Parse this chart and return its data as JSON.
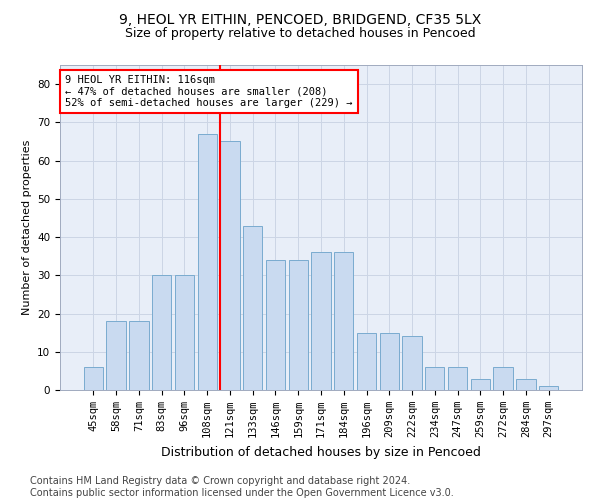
{
  "title_line1": "9, HEOL YR EITHIN, PENCOED, BRIDGEND, CF35 5LX",
  "title_line2": "Size of property relative to detached houses in Pencoed",
  "xlabel": "Distribution of detached houses by size in Pencoed",
  "ylabel": "Number of detached properties",
  "categories": [
    "45sqm",
    "58sqm",
    "71sqm",
    "83sqm",
    "96sqm",
    "108sqm",
    "121sqm",
    "133sqm",
    "146sqm",
    "159sqm",
    "171sqm",
    "184sqm",
    "196sqm",
    "209sqm",
    "222sqm",
    "234sqm",
    "247sqm",
    "259sqm",
    "272sqm",
    "284sqm",
    "297sqm"
  ],
  "bar_values": [
    6,
    18,
    18,
    30,
    30,
    67,
    65,
    43,
    34,
    34,
    36,
    36,
    15,
    15,
    14,
    6,
    6,
    3,
    6,
    3,
    1
  ],
  "bar_color": "#c9daf0",
  "bar_edge_color": "#7aabcf",
  "annotation_text": "9 HEOL YR EITHIN: 116sqm\n← 47% of detached houses are smaller (208)\n52% of semi-detached houses are larger (229) →",
  "annotation_box_color": "white",
  "annotation_box_edge": "red",
  "vline_index": 6,
  "ylim": [
    0,
    85
  ],
  "yticks": [
    0,
    10,
    20,
    30,
    40,
    50,
    60,
    70,
    80
  ],
  "grid_color": "#ccd5e5",
  "bg_color": "#e8eef8",
  "footer": "Contains HM Land Registry data © Crown copyright and database right 2024.\nContains public sector information licensed under the Open Government Licence v3.0.",
  "title_fontsize": 10,
  "subtitle_fontsize": 9,
  "xlabel_fontsize": 9,
  "ylabel_fontsize": 8,
  "tick_fontsize": 7.5,
  "annot_fontsize": 7.5,
  "footer_fontsize": 7
}
